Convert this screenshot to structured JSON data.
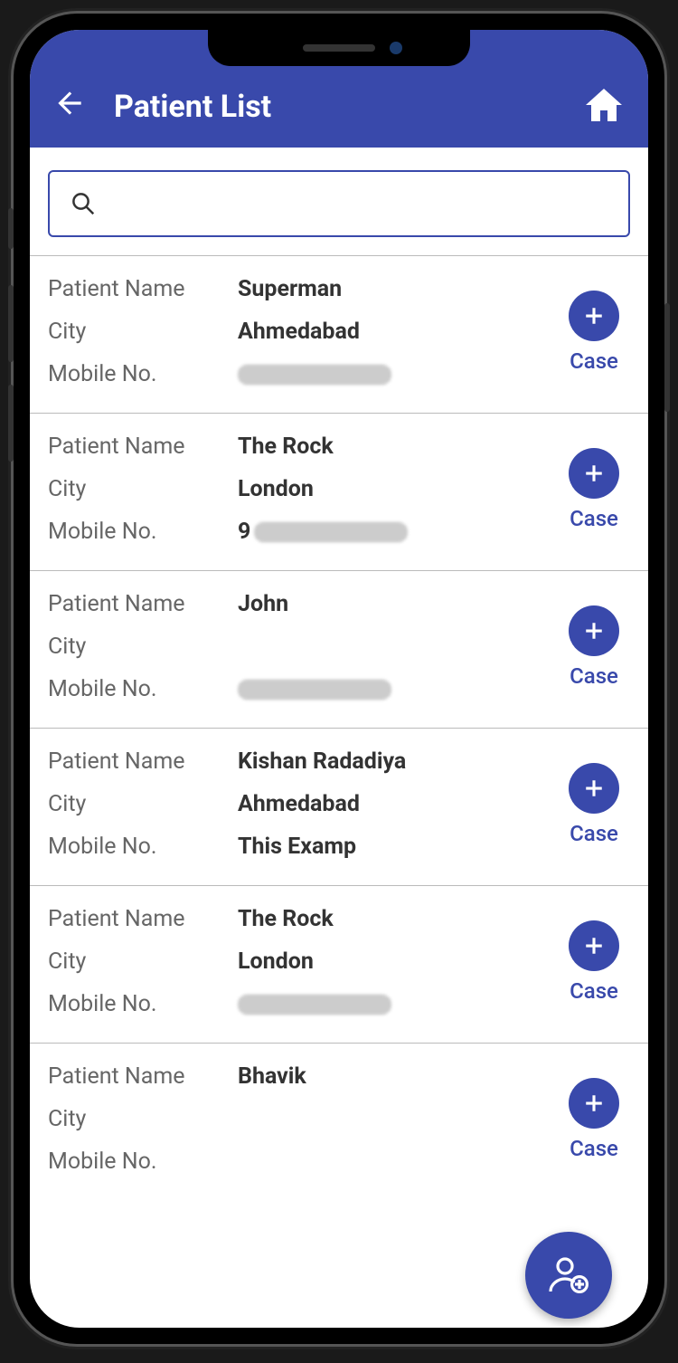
{
  "colors": {
    "primary": "#3949ab",
    "text_muted": "#666666",
    "text_strong": "#333333",
    "divider": "#bbbbbb",
    "background": "#ffffff"
  },
  "header": {
    "title": "Patient List"
  },
  "icons": {
    "back": "arrow-back",
    "home": "home",
    "search": "search",
    "add": "plus",
    "fab": "add-person"
  },
  "labels": {
    "patient_name": "Patient Name",
    "city": "City",
    "mobile": "Mobile No.",
    "case": "Case"
  },
  "search": {
    "value": "",
    "placeholder": ""
  },
  "patients": [
    {
      "name": "Superman",
      "city": "Ahmedabad",
      "mobile": "",
      "mobile_redacted": true
    },
    {
      "name": "The Rock",
      "city": "London",
      "mobile": "9",
      "mobile_redacted": true
    },
    {
      "name": "John",
      "city": "",
      "mobile": "",
      "mobile_redacted": true
    },
    {
      "name": "Kishan Radadiya",
      "city": "Ahmedabad",
      "mobile": "This Examp",
      "mobile_redacted": false
    },
    {
      "name": "The Rock",
      "city": "London",
      "mobile": "",
      "mobile_redacted": true
    },
    {
      "name": "Bhavik",
      "city": "",
      "mobile": "",
      "mobile_redacted": false
    }
  ]
}
